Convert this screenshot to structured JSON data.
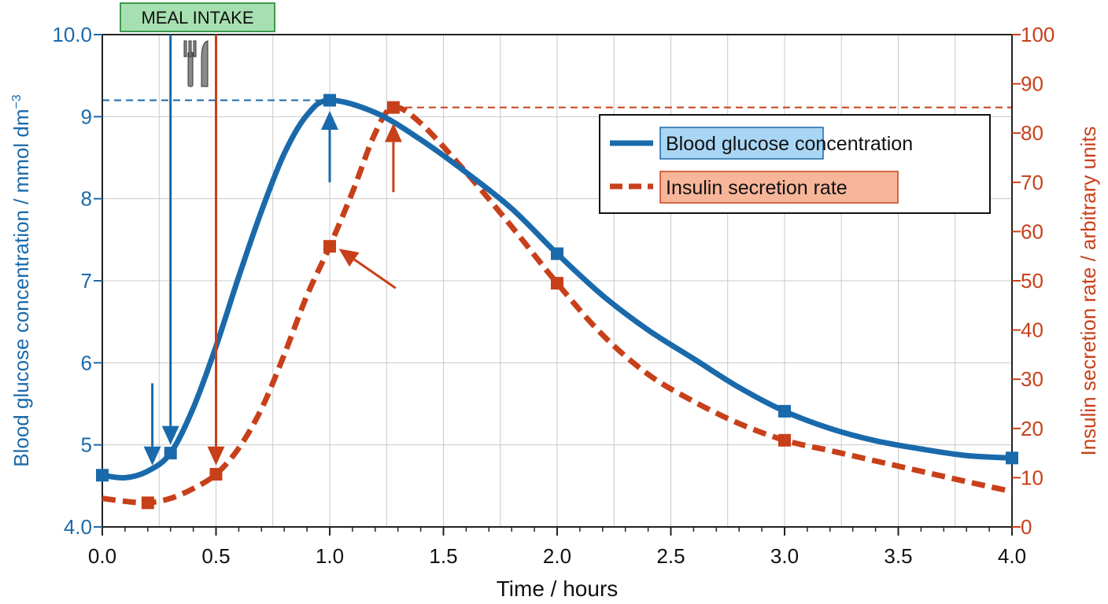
{
  "colors": {
    "glucose": "#1a6aab",
    "insulin": "#c8401a",
    "grid": "#c8c8c8",
    "meal_fill": "#a7e0b0",
    "meal_border": "#3c9a4e",
    "glucose_label_fill": "#a9d6f5",
    "insulin_label_fill": "#f7b59a"
  },
  "chart_data": {
    "type": "line",
    "xlabel": "Time / hours",
    "ylabel_left": "Blood glucose concentration / mmol dm",
    "ylabel_left_sup": "−3",
    "ylabel_right": "Insulin secretion rate / arbitrary units",
    "xlim": [
      0,
      4
    ],
    "ylim_left": [
      4,
      10
    ],
    "ylim_right": [
      0,
      100
    ],
    "x_ticks": [
      "0.0",
      "0.5",
      "1.0",
      "1.5",
      "2.0",
      "2.5",
      "3.0",
      "3.5",
      "4.0"
    ],
    "left_ticks": [
      "4.0",
      "5",
      "6",
      "7",
      "8",
      "9",
      "10.0"
    ],
    "right_ticks": [
      "0",
      "10",
      "20",
      "30",
      "40",
      "50",
      "60",
      "70",
      "80",
      "90",
      "100"
    ],
    "grid": true,
    "legend_position": "top-right",
    "annotation": "MEAL INTAKE",
    "meal_icon": "fork-knife-icon",
    "series": [
      {
        "name": "Blood glucose concentration",
        "axis": "left",
        "style": "solid",
        "points": [
          [
            0,
            4.63
          ],
          [
            0.1,
            4.6
          ],
          [
            0.2,
            4.68
          ],
          [
            0.3,
            4.9
          ],
          [
            0.4,
            5.45
          ],
          [
            0.5,
            6.2
          ],
          [
            0.6,
            7.05
          ],
          [
            0.7,
            7.85
          ],
          [
            0.8,
            8.55
          ],
          [
            0.9,
            9.02
          ],
          [
            1.0,
            9.2
          ],
          [
            1.2,
            9.05
          ],
          [
            1.4,
            8.72
          ],
          [
            1.6,
            8.32
          ],
          [
            1.8,
            7.88
          ],
          [
            2.0,
            7.33
          ],
          [
            2.2,
            6.82
          ],
          [
            2.4,
            6.4
          ],
          [
            2.6,
            6.05
          ],
          [
            2.8,
            5.7
          ],
          [
            3.0,
            5.41
          ],
          [
            3.2,
            5.2
          ],
          [
            3.4,
            5.05
          ],
          [
            3.6,
            4.95
          ],
          [
            3.8,
            4.87
          ],
          [
            4.0,
            4.84
          ]
        ],
        "markers": [
          [
            0,
            4.63
          ],
          [
            0.3,
            4.9
          ],
          [
            1.0,
            9.2
          ],
          [
            2.0,
            7.33
          ],
          [
            3.0,
            5.41
          ],
          [
            4.0,
            4.84
          ]
        ]
      },
      {
        "name": "Insulin secretion rate",
        "axis": "right",
        "style": "dashed",
        "points": [
          [
            0,
            5.8
          ],
          [
            0.1,
            5.2
          ],
          [
            0.2,
            4.9
          ],
          [
            0.3,
            5.8
          ],
          [
            0.4,
            7.8
          ],
          [
            0.5,
            10.7
          ],
          [
            0.6,
            16
          ],
          [
            0.7,
            24
          ],
          [
            0.8,
            35
          ],
          [
            0.9,
            47
          ],
          [
            1.0,
            57
          ],
          [
            1.1,
            68
          ],
          [
            1.2,
            80
          ],
          [
            1.28,
            85.2
          ],
          [
            1.4,
            82
          ],
          [
            1.6,
            72
          ],
          [
            1.8,
            61
          ],
          [
            2.0,
            49.5
          ],
          [
            2.2,
            39
          ],
          [
            2.4,
            31
          ],
          [
            2.6,
            25.5
          ],
          [
            2.8,
            21
          ],
          [
            3.0,
            17.6
          ],
          [
            3.2,
            15.5
          ],
          [
            3.4,
            13.4
          ],
          [
            3.6,
            11.3
          ],
          [
            3.8,
            9.2
          ],
          [
            4.0,
            7.2
          ]
        ],
        "markers": [
          [
            0.2,
            4.9
          ],
          [
            0.5,
            10.7
          ],
          [
            1.0,
            57
          ],
          [
            1.28,
            85.2
          ],
          [
            2.0,
            49.5
          ],
          [
            3.0,
            17.6
          ]
        ]
      }
    ],
    "reference_lines": [
      {
        "axis": "left",
        "y": 9.2,
        "x_from": 0,
        "x_to": 1.0
      },
      {
        "axis": "right",
        "y": 85.2,
        "x_from": 1.28,
        "x_to": 4.0
      }
    ],
    "arrows": [
      {
        "axis": "left",
        "from": [
          0.22,
          5.75
        ],
        "to": [
          0.22,
          4.75
        ]
      },
      {
        "axis": "left",
        "from": [
          0.3,
          10.0
        ],
        "to": [
          0.3,
          5.0
        ]
      },
      {
        "axis": "left",
        "from": [
          1.0,
          8.2
        ],
        "to": [
          1.0,
          9.07
        ]
      },
      {
        "axis": "right",
        "from": [
          0.5,
          100
        ],
        "to": [
          0.5,
          12.5
        ]
      },
      {
        "axis": "right",
        "from": [
          1.28,
          68
        ],
        "to": [
          1.28,
          82
        ]
      },
      {
        "axis": "right",
        "from": [
          1.29,
          48.5
        ],
        "to": [
          1.04,
          56.5
        ]
      }
    ]
  }
}
